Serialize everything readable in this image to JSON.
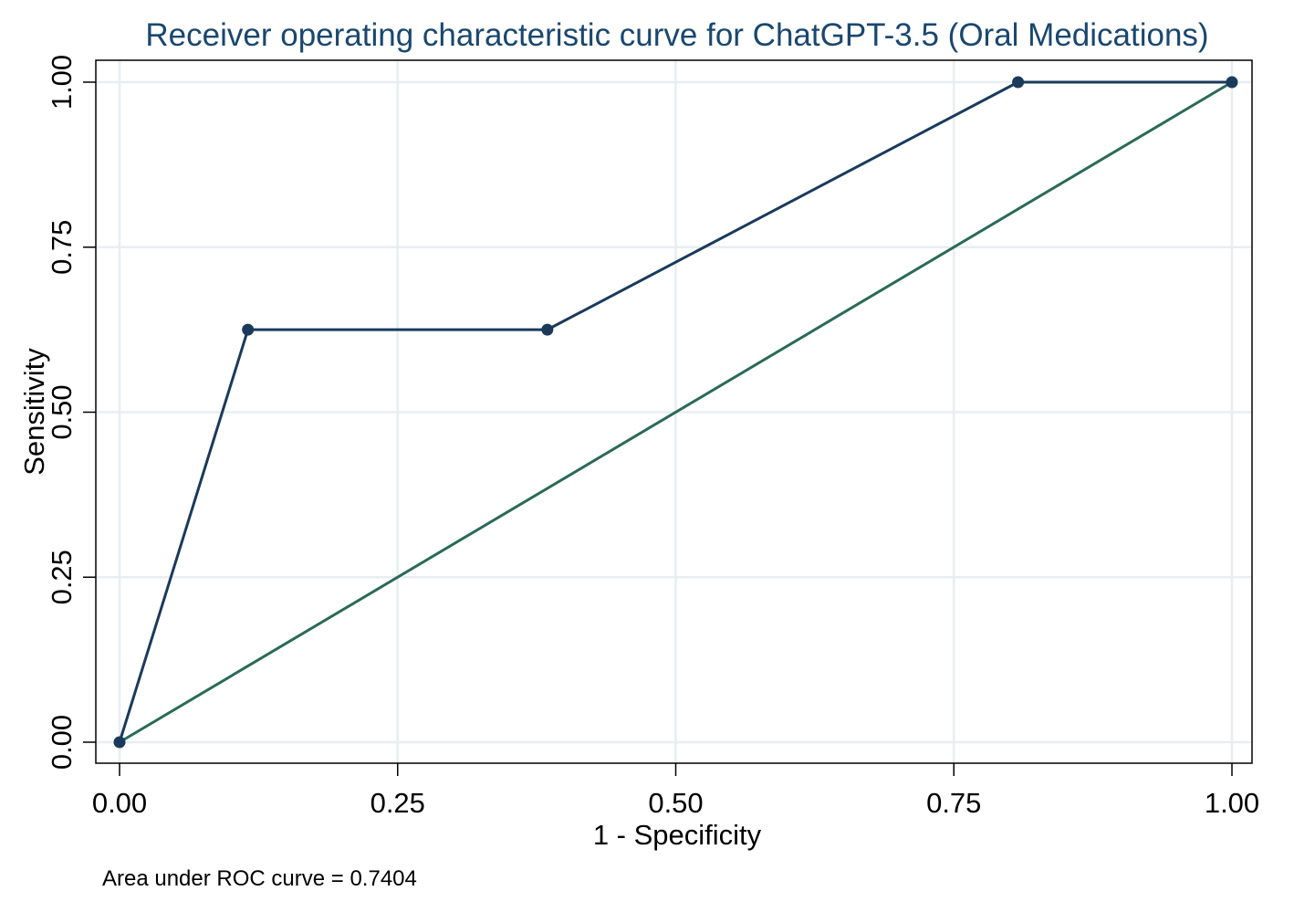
{
  "chart_data": {
    "type": "line",
    "title": "Receiver operating characteristic curve for ChatGPT-3.5 (Oral Medications)",
    "xlabel": "1 - Specificity",
    "ylabel": "Sensitivity",
    "xlim": [
      0,
      1
    ],
    "ylim": [
      0,
      1
    ],
    "x_ticks": [
      "0.00",
      "0.25",
      "0.50",
      "0.75",
      "1.00"
    ],
    "y_ticks": [
      "0.00",
      "0.25",
      "0.50",
      "0.75",
      "1.00"
    ],
    "grid": true,
    "legend": "none",
    "note": "Area under ROC curve = 0.7404",
    "series": [
      {
        "x": [
          0,
          0.1154,
          0.3846,
          0.8077,
          1.0
        ],
        "y": [
          0,
          0.625,
          0.625,
          1.0,
          1.0
        ],
        "color": "#1a3a5c",
        "markers": true
      },
      {
        "x": [
          0,
          1
        ],
        "y": [
          0,
          1
        ],
        "color": "#2a6a57",
        "markers": false
      }
    ]
  }
}
